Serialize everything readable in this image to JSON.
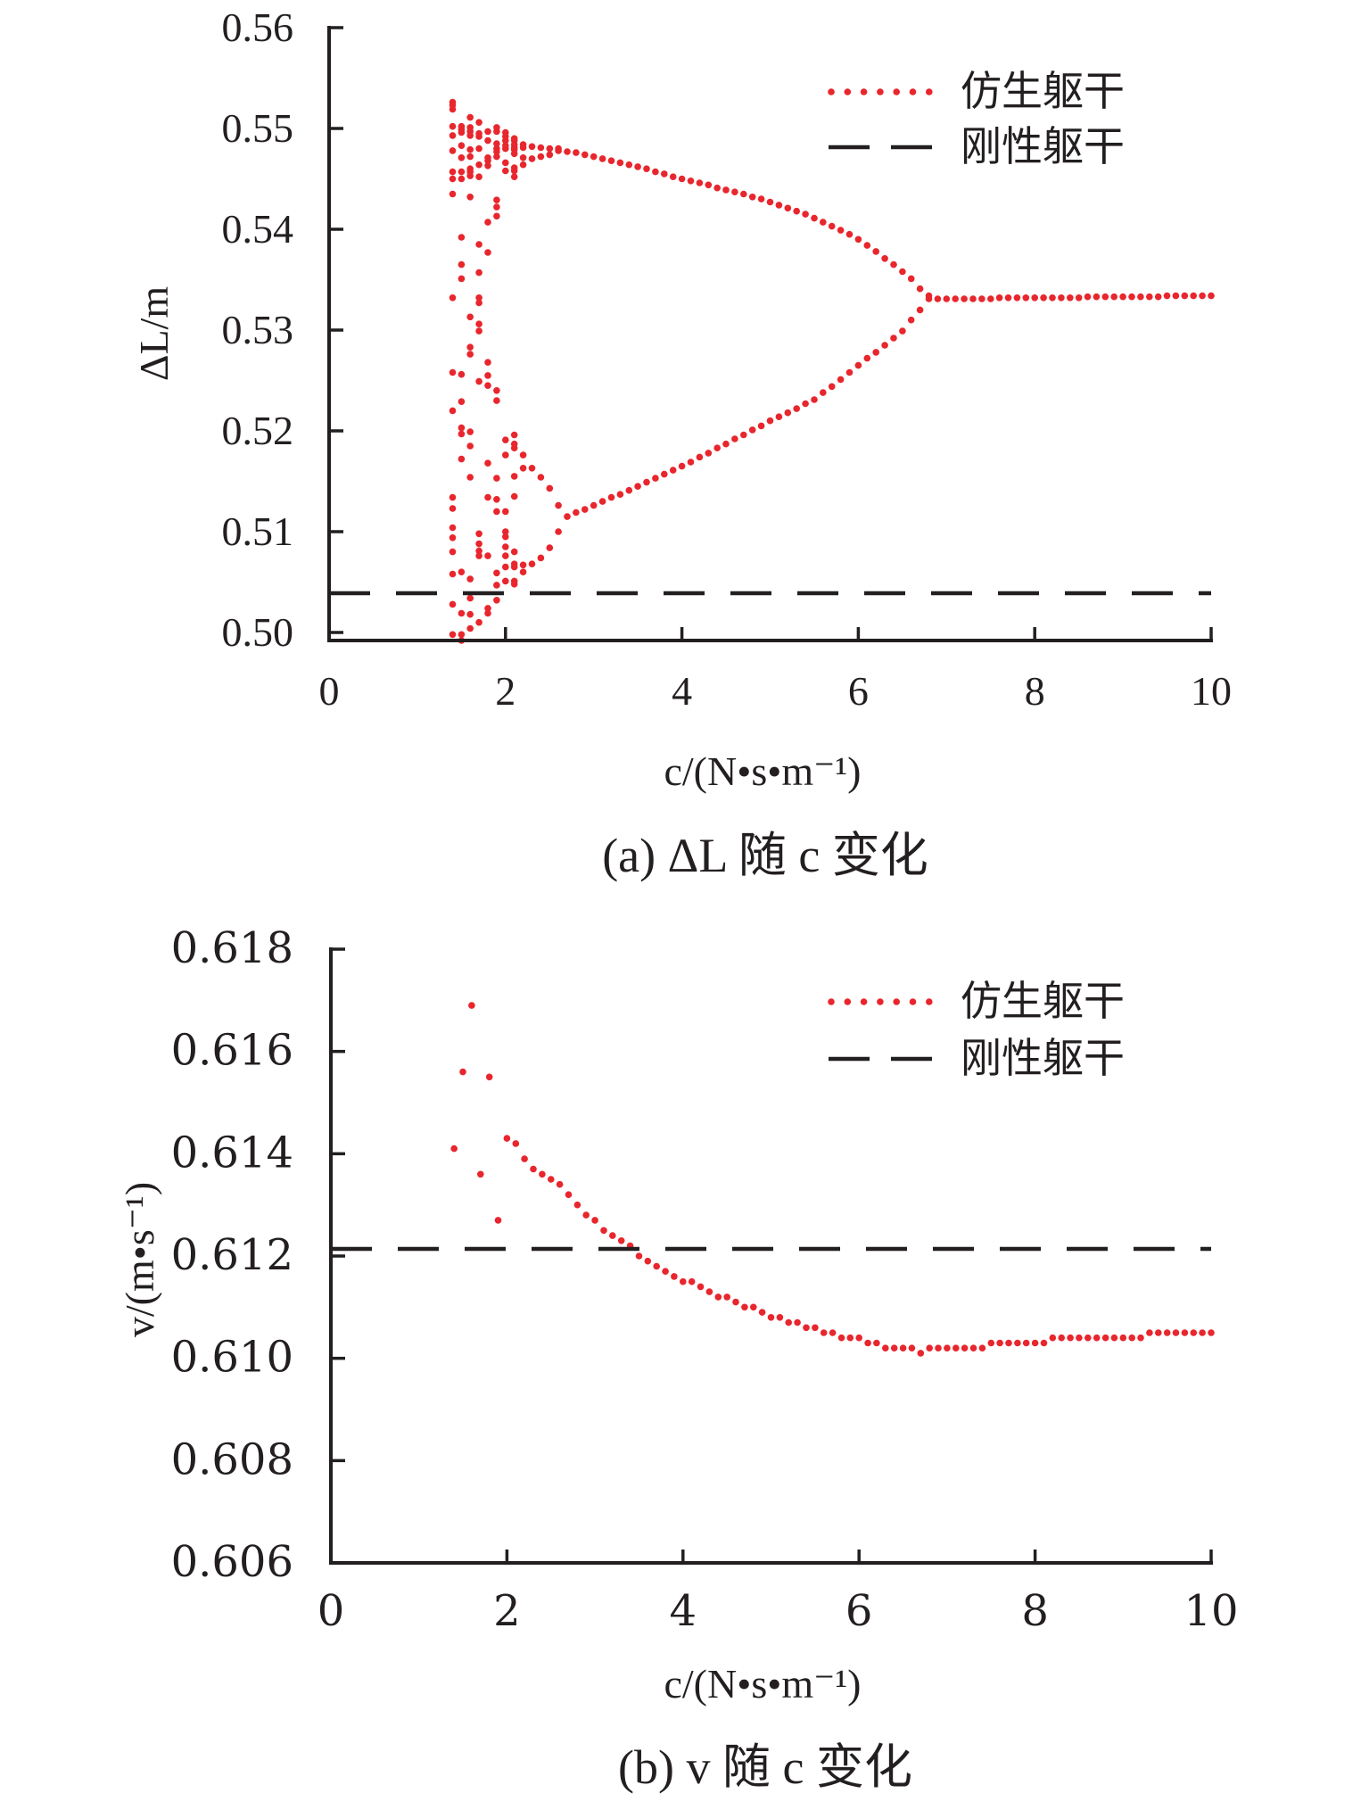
{
  "colors": {
    "bionic": "#e8262d",
    "rigid": "#231f20",
    "axis": "#231f20"
  },
  "chart_data": [
    {
      "type": "scatter",
      "caption": "(a) ΔL 随 c 变化",
      "xlabel": "c/(N•s•m⁻¹)",
      "ylabel": "ΔL/m",
      "xlim": [
        0,
        10
      ],
      "ylim": [
        0.5,
        0.56
      ],
      "xticks": [
        "0",
        "2",
        "4",
        "6",
        "8",
        "10"
      ],
      "xtick_values": [
        0,
        2,
        4,
        6,
        8,
        10
      ],
      "yticks": [
        "0.56",
        "0.55",
        "0.54",
        "0.53",
        "0.52",
        "0.51",
        "0.50"
      ],
      "ytick_values": [
        0.56,
        0.55,
        0.54,
        0.53,
        0.52,
        0.51,
        0.5
      ],
      "grid": false,
      "legend_position": "top-right",
      "legend": [
        {
          "label": "仿生躯干",
          "style": "dotted"
        },
        {
          "label": "刚性躯干",
          "style": "dashed"
        }
      ],
      "rigid_value": 0.504,
      "bionic_scatter_columns": [
        {
          "c": 1.4,
          "values": [
            0.5526,
            0.5523,
            0.5519,
            0.5502,
            0.5493,
            0.5478,
            0.5457,
            0.545,
            0.5435,
            0.5332,
            0.5258,
            0.522,
            0.5134,
            0.5123,
            0.5104,
            0.5094,
            0.508,
            0.5058,
            0.5028,
            0.4998
          ]
        },
        {
          "c": 1.5,
          "values": [
            0.5502,
            0.5499,
            0.5496,
            0.5483,
            0.5471,
            0.5457,
            0.545,
            0.5392,
            0.5365,
            0.5351,
            0.5256,
            0.5229,
            0.5203,
            0.5197,
            0.5172,
            0.506,
            0.5019,
            0.4998,
            0.4992
          ]
        },
        {
          "c": 1.6,
          "values": [
            0.5511,
            0.5501,
            0.5497,
            0.5493,
            0.5479,
            0.5472,
            0.546,
            0.5457,
            0.5453,
            0.5432,
            0.5313,
            0.5283,
            0.5276,
            0.5199,
            0.5185,
            0.5154,
            0.5053,
            0.5034,
            0.5018,
            0.5004
          ]
        },
        {
          "c": 1.7,
          "values": [
            0.5506,
            0.5495,
            0.5492,
            0.548,
            0.5464,
            0.5452,
            0.5385,
            0.5357,
            0.5332,
            0.5327,
            0.5306,
            0.5299,
            0.5249,
            0.5098,
            0.5088,
            0.5081,
            0.5076,
            0.501
          ]
        },
        {
          "c": 1.8,
          "values": [
            0.5497,
            0.5488,
            0.5471,
            0.5468,
            0.5463,
            0.5407,
            0.5377,
            0.5268,
            0.5255,
            0.5245,
            0.5168,
            0.5134,
            0.5076,
            0.5024,
            0.5019
          ]
        },
        {
          "c": 1.9,
          "values": [
            0.5501,
            0.5497,
            0.5485,
            0.548,
            0.5477,
            0.5472,
            0.5429,
            0.5422,
            0.5413,
            0.524,
            0.523,
            0.5153,
            0.5132,
            0.512,
            0.5059,
            0.5047,
            0.5032
          ]
        },
        {
          "c": 2.0,
          "values": [
            0.5496,
            0.5492,
            0.5488,
            0.5483,
            0.548,
            0.5466,
            0.5458,
            0.5191,
            0.5176,
            0.512,
            0.51,
            0.5095,
            0.5085,
            0.5076,
            0.5065,
            0.5051
          ]
        },
        {
          "c": 2.1,
          "values": [
            0.549,
            0.5488,
            0.5484,
            0.5481,
            0.5479,
            0.5475,
            0.5461,
            0.5458,
            0.5452,
            0.5196,
            0.5187,
            0.5183,
            0.5155,
            0.5135,
            0.508,
            0.5068,
            0.5065,
            0.5051,
            0.5048
          ]
        },
        {
          "c": 2.2,
          "values": [
            0.5484,
            0.5481,
            0.5471,
            0.5464,
            0.5176,
            0.5163,
            0.5067,
            0.506
          ]
        },
        {
          "c": 2.3,
          "values": [
            0.5482,
            0.547,
            0.5163,
            0.5068
          ]
        },
        {
          "c": 2.4,
          "values": [
            0.5481,
            0.5472,
            0.5154,
            0.5074
          ]
        },
        {
          "c": 2.5,
          "values": [
            0.548,
            0.5474,
            0.5143,
            0.5084
          ]
        },
        {
          "c": 2.6,
          "values": [
            0.548,
            0.5478,
            0.5126,
            0.51
          ]
        }
      ],
      "bionic_upper_branch": {
        "c_start": 2.7,
        "c_step": 0.1,
        "values": [
          0.5477,
          0.5476,
          0.5474,
          0.5472,
          0.547,
          0.5468,
          0.5466,
          0.5464,
          0.5462,
          0.546,
          0.5457,
          0.5455,
          0.5452,
          0.545,
          0.5448,
          0.5446,
          0.5444,
          0.5441,
          0.5439,
          0.5437,
          0.5435,
          0.5432,
          0.543,
          0.5427,
          0.5424,
          0.5421,
          0.5418,
          0.5415,
          0.5411,
          0.5407,
          0.5403,
          0.5399,
          0.5395,
          0.539,
          0.5384,
          0.5378,
          0.5371,
          0.5365,
          0.5358,
          0.5351,
          0.5341,
          0.5334
        ]
      },
      "bionic_lower_branch": {
        "c_start": 2.7,
        "c_step": 0.1,
        "values": [
          0.5115,
          0.5119,
          0.5122,
          0.5126,
          0.513,
          0.5134,
          0.5137,
          0.5141,
          0.5145,
          0.5149,
          0.5153,
          0.5157,
          0.5161,
          0.5165,
          0.5169,
          0.5174,
          0.5178,
          0.5183,
          0.5187,
          0.5192,
          0.5196,
          0.5201,
          0.5205,
          0.521,
          0.5214,
          0.5218,
          0.5222,
          0.5227,
          0.5231,
          0.5238,
          0.5244,
          0.5251,
          0.5258,
          0.5265,
          0.5272,
          0.5278,
          0.5285,
          0.5292,
          0.5299,
          0.531,
          0.532,
          0.5331
        ]
      },
      "bionic_single_branch": {
        "c_start": 6.9,
        "c_step": 0.1,
        "values": [
          0.5331,
          0.5331,
          0.5331,
          0.5331,
          0.5331,
          0.5331,
          0.5331,
          0.5332,
          0.5332,
          0.5332,
          0.5332,
          0.5332,
          0.5332,
          0.5332,
          0.5332,
          0.5332,
          0.5332,
          0.5333,
          0.5333,
          0.5333,
          0.5333,
          0.5333,
          0.5333,
          0.5333,
          0.5333,
          0.5333,
          0.5334,
          0.5334,
          0.5334,
          0.5334,
          0.5334,
          0.5334
        ]
      }
    },
    {
      "type": "scatter",
      "caption": "(b) v 随 c 变化",
      "xlabel": "c/(N•s•m⁻¹)",
      "ylabel": "v/(m•s⁻¹)",
      "xlim": [
        0,
        10
      ],
      "ylim": [
        0.606,
        0.618
      ],
      "xticks": [
        "0",
        "2",
        "4",
        "6",
        "8",
        "10"
      ],
      "xtick_values": [
        0,
        2,
        4,
        6,
        8,
        10
      ],
      "yticks": [
        "0.618",
        "0.616",
        "0.614",
        "0.612",
        "0.610",
        "0.608",
        "0.606"
      ],
      "ytick_values": [
        0.618,
        0.616,
        0.614,
        0.612,
        0.61,
        0.608,
        0.606
      ],
      "grid": false,
      "legend_position": "top-right",
      "legend": [
        {
          "label": "仿生躯干",
          "style": "dotted"
        },
        {
          "label": "刚性躯干",
          "style": "dashed"
        }
      ],
      "rigid_value": 0.6121,
      "bionic_series": {
        "c_start": 1.4,
        "c_step": 0.1,
        "values": [
          0.6141,
          0.6156,
          0.6169,
          0.6136,
          0.6155,
          0.6127,
          0.6143,
          0.6142,
          0.6139,
          0.6137,
          0.6136,
          0.6135,
          0.6134,
          0.6132,
          0.613,
          0.6128,
          0.6127,
          0.6125,
          0.6124,
          0.6123,
          0.6122,
          0.612,
          0.6119,
          0.6118,
          0.6117,
          0.6116,
          0.6115,
          0.6115,
          0.6114,
          0.6113,
          0.6112,
          0.6112,
          0.6111,
          0.611,
          0.611,
          0.6109,
          0.6108,
          0.6108,
          0.6107,
          0.6107,
          0.6106,
          0.6106,
          0.6105,
          0.6105,
          0.6104,
          0.6104,
          0.6104,
          0.6103,
          0.6103,
          0.6102,
          0.6102,
          0.6102,
          0.6102,
          0.6101,
          0.6102,
          0.6102,
          0.6102,
          0.6102,
          0.6102,
          0.6102,
          0.6102,
          0.6103,
          0.6103,
          0.6103,
          0.6103,
          0.6103,
          0.6103,
          0.6103,
          0.6104,
          0.6104,
          0.6104,
          0.6104,
          0.6104,
          0.6104,
          0.6104,
          0.6104,
          0.6104,
          0.6104,
          0.6104,
          0.6105,
          0.6105,
          0.6105,
          0.6105,
          0.6105,
          0.6105,
          0.6105,
          0.6105
        ]
      }
    }
  ]
}
